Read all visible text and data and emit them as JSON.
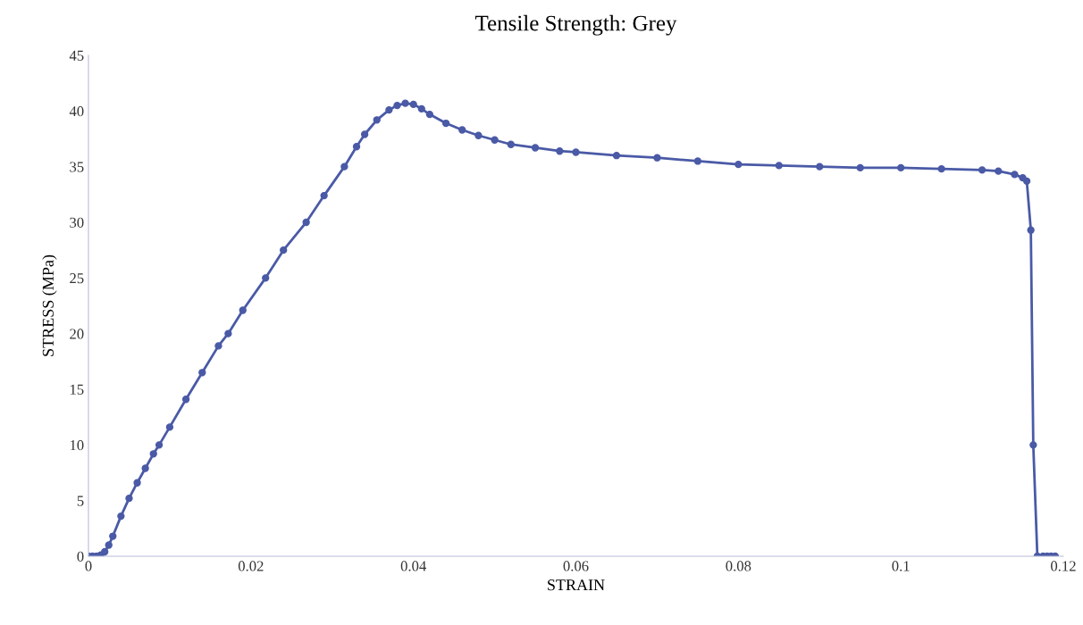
{
  "chart_data": {
    "type": "line",
    "title": "Tensile Strength: Grey",
    "xlabel": "STRAIN",
    "ylabel": "STRESS (MPa)",
    "xlim": [
      0,
      0.12
    ],
    "xticks": [
      {
        "value": 0,
        "label": "0"
      },
      0.02,
      0.04,
      0.06,
      0.08,
      {
        "value": 0.1,
        "label": "0.1"
      },
      0.12
    ],
    "ylim": [
      0,
      45
    ],
    "yticks": [
      0,
      5,
      10,
      15,
      20,
      25,
      30,
      35,
      40,
      45
    ],
    "grid": false,
    "legend": false,
    "marker": "circle",
    "line_style": "solid",
    "series": [
      {
        "color": "#4a5aa6",
        "x": [
          0,
          0.0005,
          0.001,
          0.0015,
          0.002,
          0.0025,
          0.003,
          0.004,
          0.005,
          0.006,
          0.007,
          0.008,
          0.0087,
          0.01,
          0.012,
          0.014,
          0.016,
          0.0172,
          0.019,
          0.0218,
          0.024,
          0.0268,
          0.029,
          0.0315,
          0.033,
          0.034,
          0.0355,
          0.037,
          0.038,
          0.039,
          0.04,
          0.041,
          0.042,
          0.044,
          0.046,
          0.048,
          0.05,
          0.052,
          0.055,
          0.058,
          0.06,
          0.065,
          0.07,
          0.075,
          0.08,
          0.085,
          0.09,
          0.095,
          0.1,
          0.105,
          0.11,
          0.112,
          0.114,
          0.115,
          0.1155,
          0.116,
          0.1163,
          0.1168,
          0.1175,
          0.118,
          0.1185,
          0.119
        ],
        "values": [
          0,
          0,
          0,
          0.1,
          0.4,
          1,
          1.8,
          3.6,
          5.2,
          6.6,
          7.9,
          9.2,
          10,
          11.6,
          14.1,
          16.5,
          18.9,
          20,
          22.1,
          25,
          27.5,
          30,
          32.4,
          35,
          36.8,
          37.9,
          39.2,
          40.1,
          40.5,
          40.7,
          40.6,
          40.2,
          39.7,
          38.9,
          38.3,
          37.8,
          37.4,
          37,
          36.7,
          36.4,
          36.3,
          36,
          35.8,
          35.5,
          35.2,
          35.1,
          35,
          34.9,
          34.9,
          34.8,
          34.7,
          34.6,
          34.3,
          34,
          33.7,
          29.3,
          10,
          0,
          0,
          0,
          0,
          0
        ]
      }
    ]
  }
}
